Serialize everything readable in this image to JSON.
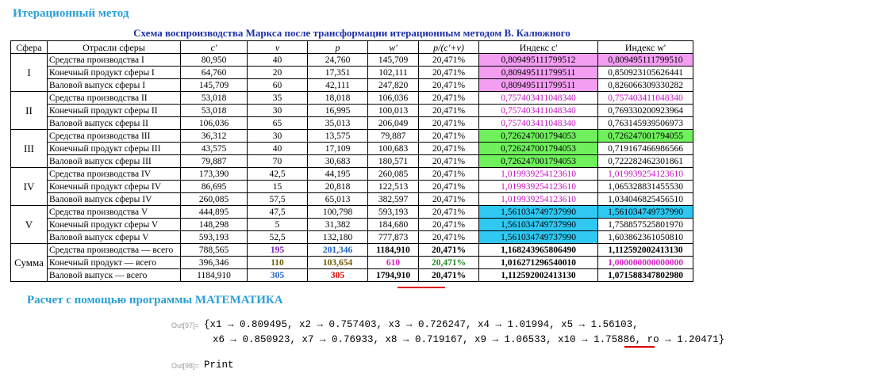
{
  "headings": {
    "iterative": "Итерационный метод",
    "mathematica": "Расчет с помощью программы МАТЕМАТИКА"
  },
  "table": {
    "title": "Схема воспроизводства Маркса  после трансформации итерационным методом В. Калюжного",
    "headers": [
      "Сфера",
      "Отрасли сферы",
      "c'",
      "v",
      "p",
      "w'",
      "p/(c'+v)",
      "Индекс  c'",
      "Индекс w'"
    ],
    "spheres": [
      "I",
      "II",
      "III",
      "IV",
      "V",
      "Сумма"
    ],
    "rows": [
      [
        "Средства производства I",
        "80,950",
        "40",
        "24,760",
        "145,709",
        "20,471%",
        "0,809495111799512",
        "0,809495111799510"
      ],
      [
        "Конечный продукт сферы I",
        "64,760",
        "20",
        "17,351",
        "102,111",
        "20,471%",
        "0,809495111799511",
        "0,850923105626441"
      ],
      [
        "Валовой выпуск сферы I",
        "145,709",
        "60",
        "42,111",
        "247,820",
        "20,471%",
        "0,809495111799511",
        "0,826066309330282"
      ],
      [
        "Средства производства II",
        "53,018",
        "35",
        "18,018",
        "106,036",
        "20,471%",
        "0,757403411048340",
        "0,757403411048340"
      ],
      [
        "Конечный продукт сферы II",
        "53,018",
        "30",
        "16,995",
        "100,013",
        "20,471%",
        "0,757403411048340",
        "0,769330200923964"
      ],
      [
        "Валовой выпуск сферы II",
        "106,036",
        "65",
        "35,013",
        "206,049",
        "20,471%",
        "0,757403411048340",
        "0,763145939506973"
      ],
      [
        "Средства производства III",
        "36,312",
        "30",
        "13,575",
        "79,887",
        "20,471%",
        "0,726247001794053",
        "0,726247001794055"
      ],
      [
        "Конечный продукт сферы III",
        "43,575",
        "40",
        "17,109",
        "100,683",
        "20,471%",
        "0,726247001794053",
        "0,719167466986566"
      ],
      [
        "Валовой выпуск сферы III",
        "79,887",
        "70",
        "30,683",
        "180,571",
        "20,471%",
        "0,726247001794053",
        "0,722282462301861"
      ],
      [
        "Средства производства IV",
        "173,390",
        "42,5",
        "44,195",
        "260,085",
        "20,471%",
        "1,019939254123610",
        "1,019939254123610"
      ],
      [
        "Конечный продукт сферы IV",
        "86,695",
        "15",
        "20,818",
        "122,513",
        "20,471%",
        "1,019939254123610",
        "1,065328831455530"
      ],
      [
        "Валовой выпуск сферы IV",
        "260,085",
        "57,5",
        "65,013",
        "382,597",
        "20,471%",
        "1,019939254123610",
        "1,034046825456510"
      ],
      [
        "Средства производства V",
        "444,895",
        "47,5",
        "100,798",
        "593,193",
        "20,471%",
        "1,561034749737990",
        "1,561034749737990"
      ],
      [
        "Конечный продукт сферы V",
        "148,298",
        "5",
        "31,382",
        "184,680",
        "20,471%",
        "1,561034749737990",
        "1,758857525801970"
      ],
      [
        "Валовой выпуск сферы V",
        "593,193",
        "52,5",
        "132,180",
        "777,873",
        "20,471%",
        "1,561034749737990",
        "1,603862361050810"
      ],
      [
        "Средства производства — всего",
        "788,565",
        "195",
        "201,346",
        "1184,910",
        "20,471%",
        "1,168243965806490",
        "1,112592002413130"
      ],
      [
        "Конечный продукт — всего",
        "396,346",
        "110",
        "103,654",
        "610",
        "20,471%",
        "1,016271296540010",
        "1,000000000000000"
      ],
      [
        "Валовой выпуск — всего",
        "1184,910",
        "305",
        "305",
        "1794,910",
        "20,471%",
        "1,112592002413130",
        "1,071588347802980"
      ]
    ]
  },
  "mathematica": {
    "out97_label": "Out[97]=",
    "out97_line1": "{x1 → 0.809495, x2 → 0.757403, x3 → 0.726247, x4 → 1.01994, x5 → 1.56103,",
    "out97_line2": "x6 → 0.850923, x7 → 0.76933, x8 → 0.719167, x9 → 1.06533, x10 → 1.75886, ro → 1.20471}",
    "out98_label": "Out[98]=",
    "out98_value": "Print"
  },
  "colors": {
    "heading": "#2a9fd6",
    "title": "#1c2fa8",
    "highlight_pink": "#f49ef2",
    "highlight_green": "#6ff15c",
    "highlight_cyan": "#2ec8f2",
    "underline_red": "#e00000"
  }
}
